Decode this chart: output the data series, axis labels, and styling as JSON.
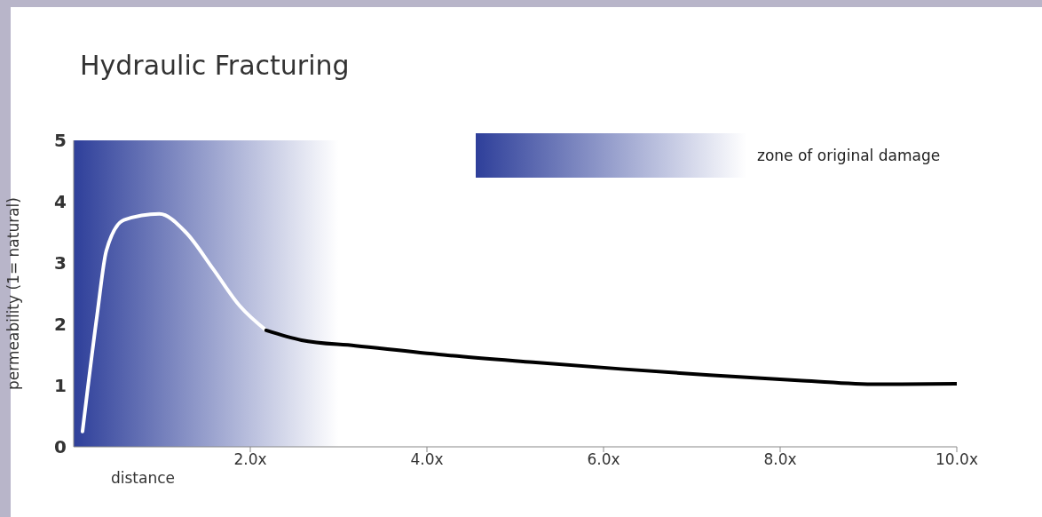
{
  "chart_data": {
    "type": "line",
    "title": "Hydraulic Fracturing",
    "xlabel": "distance",
    "ylabel": "permeability (1= natural)",
    "series": [
      {
        "color": "#ffffff",
        "x": [
          0.1,
          0.27,
          0.37,
          0.57,
          0.97,
          1.27,
          1.58,
          1.88,
          2.18
        ],
        "values": [
          0.25,
          2.2,
          3.2,
          3.7,
          3.8,
          3.5,
          2.9,
          2.3,
          1.9
        ]
      },
      {
        "color": "#000000",
        "x": [
          2.18,
          2.58,
          3.19,
          4.19,
          5.2,
          6.2,
          7.2,
          8.25,
          9.1,
          10
        ],
        "values": [
          1.9,
          1.74,
          1.65,
          1.5,
          1.38,
          1.27,
          1.17,
          1.08,
          1.02,
          1.03
        ]
      }
    ],
    "xlim": [
      0,
      10
    ],
    "xticks": [
      {
        "value": 2,
        "label": "2.0x"
      },
      {
        "value": 4,
        "label": "4.0x"
      },
      {
        "value": 6,
        "label": "6.0x"
      },
      {
        "value": 8,
        "label": "8.0x"
      },
      {
        "value": 10,
        "label": "10.0x"
      }
    ],
    "ylim": [
      0,
      5
    ],
    "yticks": [
      0,
      1,
      2,
      3,
      4,
      5
    ],
    "bands": [
      {
        "axis": "x",
        "from": 0,
        "to": 3,
        "color": "#2e3f9a"
      }
    ],
    "annotations": [
      "zone of original damage"
    ],
    "grid": false,
    "marker": "none",
    "line_style": "solid"
  }
}
